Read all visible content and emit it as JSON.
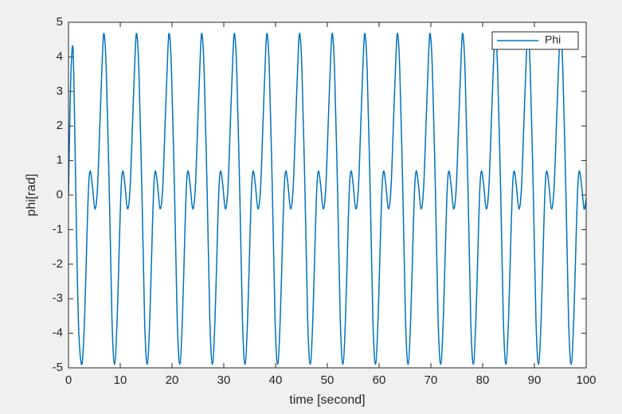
{
  "chart_data": {
    "type": "line",
    "xlabel": "time [second]",
    "ylabel": "phi[rad]",
    "xlim": [
      0,
      100
    ],
    "xticks": [
      0,
      10,
      20,
      30,
      40,
      50,
      60,
      70,
      80,
      90,
      100
    ],
    "ylim": [
      -5,
      5
    ],
    "yticks": [
      -5,
      -4,
      -3,
      -2,
      -1,
      0,
      1,
      2,
      3,
      4,
      5
    ],
    "grid": false,
    "legend": "northeast",
    "x": [
      0,
      0.3,
      0.6,
      0.9,
      1.2,
      1.6,
      2.0,
      2.6,
      3.1,
      3.6,
      3.9,
      4.2,
      4.6,
      5.1,
      5.6,
      6.1,
      6.6,
      6.9,
      7.3,
      7.9,
      8.4,
      8.9,
      9.4,
      9.9,
      10.2,
      10.5,
      10.9,
      11.4,
      11.9,
      12.4,
      12.9,
      13.2,
      13.6,
      14.2,
      14.7,
      15.2,
      15.7,
      16.2,
      16.5,
      16.8,
      17.2,
      17.7,
      18.2,
      18.7,
      19.2,
      19.5,
      19.9,
      20.5,
      21,
      21.5,
      22,
      22.5,
      22.8,
      23.1,
      23.5,
      24,
      24.5,
      25,
      25.5,
      25.8,
      26.2,
      26.8,
      27.3,
      27.8,
      28.3,
      28.8,
      29.1,
      29.4,
      29.8,
      30.3,
      30.8,
      31.3,
      31.8,
      32.1,
      32.5,
      33.1,
      33.6,
      34.1,
      34.6,
      35.1,
      35.4,
      35.7,
      36.1,
      36.6,
      37.1,
      37.6,
      38.1,
      38.4,
      38.8,
      39.4,
      39.9,
      40.4,
      40.9,
      41.4,
      41.7,
      42,
      42.4,
      42.9,
      43.4,
      43.9,
      44.4,
      44.7,
      45.1,
      45.7,
      46.2,
      46.7,
      47.2,
      47.7,
      48,
      48.3,
      48.7,
      49.2,
      49.7,
      50.2,
      50.7,
      51,
      51.4,
      52,
      52.5,
      53,
      53.5,
      54,
      54.3,
      54.6,
      55,
      55.5,
      56,
      56.5,
      57,
      57.3,
      57.7,
      58.3,
      58.8,
      59.3,
      59.8,
      60.3,
      60.6,
      60.9,
      61.3,
      61.8,
      62.3,
      62.8,
      63.3,
      63.6,
      64,
      64.6,
      65.1,
      65.6,
      66.1,
      66.6,
      66.9,
      67.2,
      67.6,
      68.1,
      68.6,
      69.1,
      69.6,
      69.9,
      70.3,
      70.9,
      71.4,
      71.9,
      72.4,
      72.9,
      73.2,
      73.5,
      73.9,
      74.4,
      74.9,
      75.4,
      75.9,
      76.2,
      76.6,
      77.2,
      77.7,
      78.2,
      78.7,
      79.2,
      79.5,
      79.8,
      80.2,
      80.7,
      81.2,
      81.7,
      82.2,
      82.5,
      82.9,
      83.5,
      84,
      84.5,
      85,
      85.5,
      85.8,
      86.1,
      86.5,
      87,
      87.5,
      88,
      88.5,
      88.8,
      89.2,
      89.8,
      90.3,
      90.8,
      91.3,
      91.8,
      92.1,
      92.4,
      92.8,
      93.3,
      93.8,
      94.3,
      94.8,
      95.1,
      95.5,
      96.1,
      96.6,
      97.1,
      97.6,
      98.1,
      98.4,
      98.7,
      99.1,
      99.6,
      100
    ],
    "series": [
      {
        "name": "Phi",
        "color": "#0072bd",
        "values": [
          0,
          2.5,
          4.0,
          4.15,
          2.0,
          -1.5,
          -4.0,
          -4.9,
          -3.6,
          -1.0,
          0.3,
          0.7,
          0.3,
          -0.4,
          0.2,
          2.2,
          4.2,
          4.65,
          3.6,
          0,
          -3.6,
          -4.9,
          -3.6,
          -1.0,
          0.3,
          0.7,
          0.3,
          -0.4,
          0.2,
          2.2,
          4.2,
          4.65,
          3.6,
          0,
          -3.6,
          -4.9,
          -3.6,
          -1.0,
          0.3,
          0.7,
          0.3,
          -0.4,
          0.2,
          2.2,
          4.2,
          4.65,
          3.6,
          0,
          -3.6,
          -4.9,
          -3.6,
          -1.0,
          0.3,
          0.7,
          0.3,
          -0.4,
          0.2,
          2.2,
          4.2,
          4.65,
          3.6,
          0,
          -3.6,
          -4.9,
          -3.6,
          -1.0,
          0.3,
          0.7,
          0.3,
          -0.4,
          0.2,
          2.2,
          4.2,
          4.65,
          3.6,
          0,
          -3.6,
          -4.9,
          -3.6,
          -1.0,
          0.3,
          0.7,
          0.3,
          -0.4,
          0.2,
          2.2,
          4.2,
          4.65,
          3.6,
          0,
          -3.6,
          -4.9,
          -3.6,
          -1.0,
          0.3,
          0.7,
          0.3,
          -0.4,
          0.2,
          2.2,
          4.2,
          4.65,
          3.6,
          0,
          -3.6,
          -4.9,
          -3.6,
          -1.0,
          0.3,
          0.7,
          0.3,
          -0.4,
          0.2,
          2.2,
          4.2,
          4.65,
          3.6,
          0,
          -3.6,
          -4.9,
          -3.6,
          -1.0,
          0.3,
          0.7,
          0.3,
          -0.4,
          0.2,
          2.2,
          4.2,
          4.65,
          3.6,
          0,
          -3.6,
          -4.9,
          -3.6,
          -1.0,
          0.3,
          0.7,
          0.3,
          -0.4,
          0.2,
          2.2,
          4.2,
          4.65,
          3.6,
          0,
          -3.6,
          -4.9,
          -3.6,
          -1.0,
          0.3,
          0.7,
          0.3,
          -0.4,
          0.2,
          2.2,
          4.2,
          4.65,
          3.6,
          0,
          -3.6,
          -4.9,
          -3.6,
          -1.0,
          0.3,
          0.7,
          0.3,
          -0.4,
          0.2,
          2.2,
          4.2,
          4.65,
          3.6,
          0,
          -3.6,
          -4.9,
          -3.6,
          -1.0,
          0.3,
          0.7,
          0.3,
          -0.4,
          0.2,
          2.2,
          4.2,
          4.65,
          3.6,
          0,
          -3.6,
          -4.9,
          -3.6,
          -1.0,
          0.3,
          0.7,
          0.3,
          -0.4,
          0.2,
          2.2,
          4.2,
          4.65,
          3.6,
          0,
          -3.6,
          -4.9,
          -3.6,
          -1.0,
          0.3,
          0.7,
          0.3,
          -0.4,
          0.2,
          2.2,
          4.2,
          4.65,
          3.6,
          0,
          -3.6,
          -4.9,
          -3.6,
          -1.0,
          0.3,
          0.7,
          0.3,
          -0.4,
          -0.1
        ]
      }
    ]
  }
}
